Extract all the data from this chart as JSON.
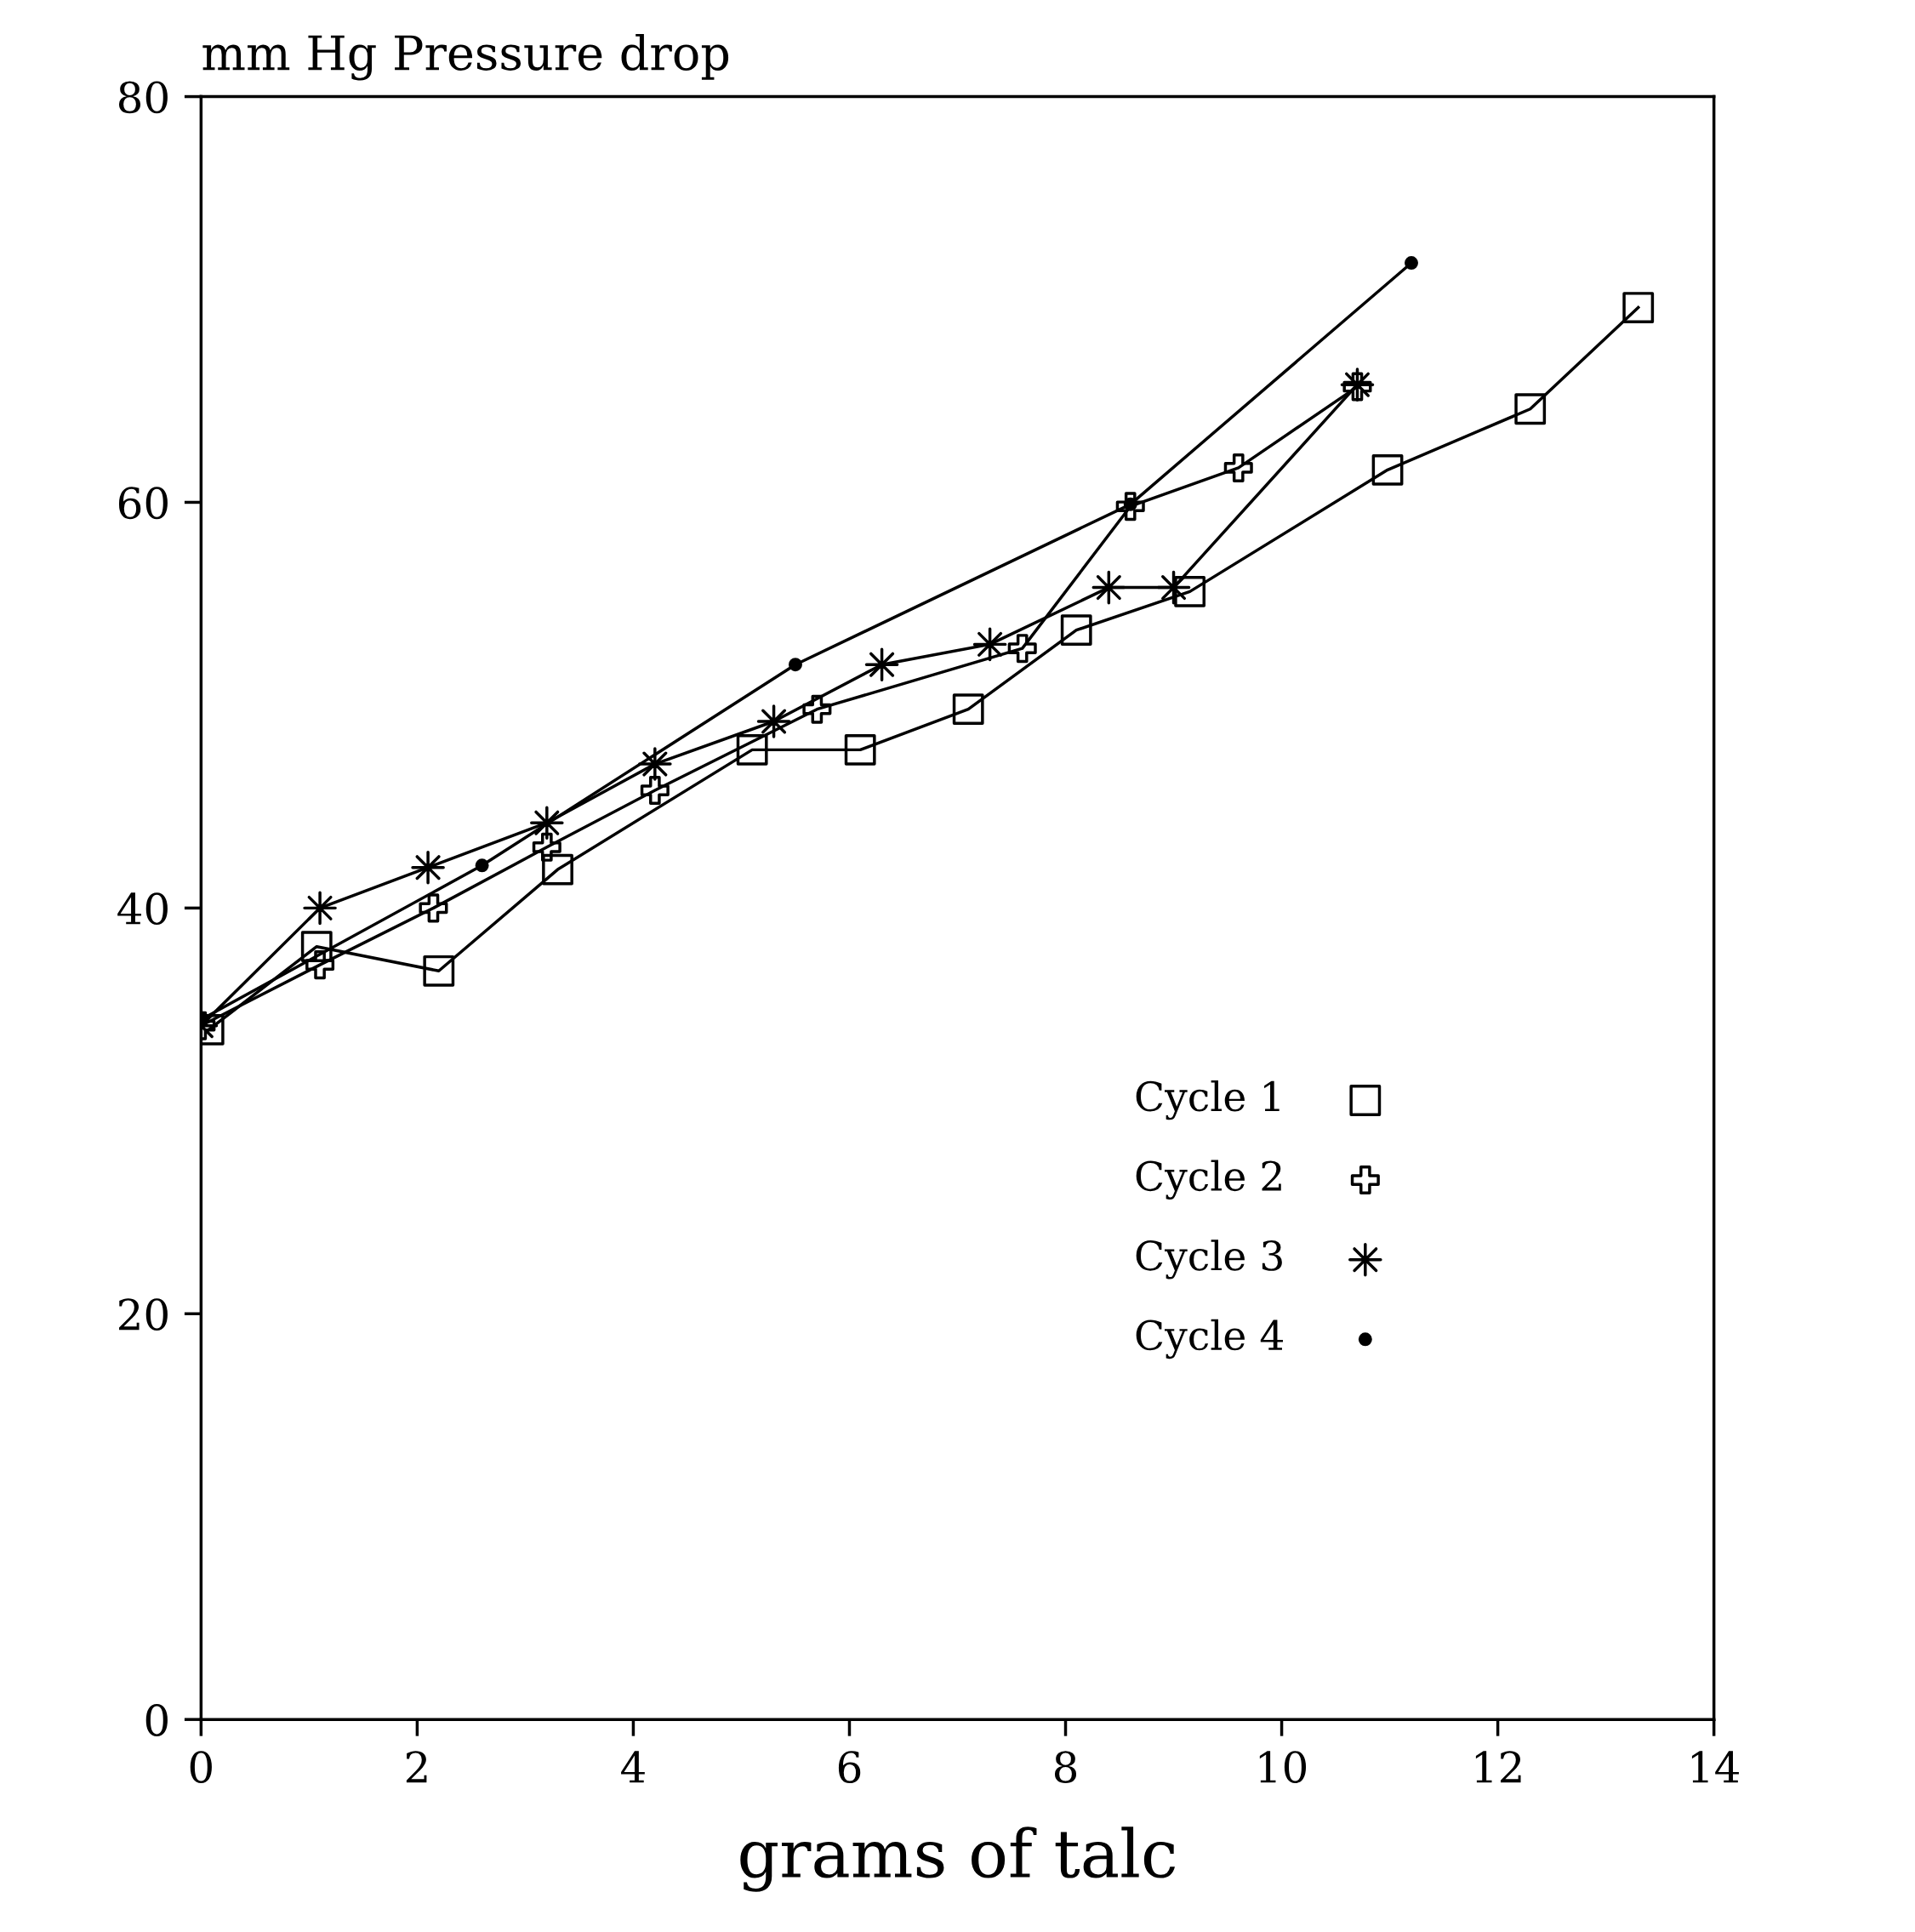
{
  "chart_data": {
    "type": "line",
    "ylabel": "mm Hg Pressure drop",
    "xlabel": "grams of talc",
    "xlim": [
      0,
      14
    ],
    "ylim": [
      0,
      80
    ],
    "xticks": [
      0,
      2,
      4,
      6,
      8,
      10,
      12,
      14
    ],
    "yticks": [
      0,
      20,
      40,
      60,
      80
    ],
    "grid": false,
    "legend": "bottom right",
    "line_style": "solid",
    "series": [
      {
        "name": "Cycle 1",
        "color": "#000000",
        "marker": "square",
        "x": [
          0.07,
          1.07,
          2.2,
          3.3,
          5.1,
          6.1,
          7.1,
          8.1,
          9.15,
          10.98,
          12.3,
          13.3
        ],
        "values": [
          34,
          38.1,
          36.9,
          41.9,
          47.8,
          47.8,
          49.8,
          53.7,
          55.6,
          61.6,
          64.6,
          69.6
        ]
      },
      {
        "name": "Cycle 2",
        "color": "#000000",
        "marker": "cross",
        "x": [
          0,
          1.1,
          2.15,
          3.2,
          4.2,
          5.7,
          7.6,
          8.6,
          9.6,
          10.7
        ],
        "values": [
          34.2,
          37.2,
          40,
          43,
          45.8,
          49.8,
          52.8,
          59.8,
          61.7,
          65.7
        ]
      },
      {
        "name": "Cycle 3",
        "color": "#000000",
        "marker": "star",
        "x": [
          0,
          1.1,
          2.1,
          3.2,
          4.2,
          5.3,
          6.3,
          7.3,
          8.4,
          9.0,
          10.7
        ],
        "values": [
          34.2,
          40,
          42,
          44.2,
          47.1,
          49.2,
          52,
          53,
          55.8,
          55.8,
          65.8
        ]
      },
      {
        "name": "Cycle 4",
        "color": "#000000",
        "marker": "circle",
        "x": [
          0,
          2.6,
          5.5,
          8.6,
          11.2
        ],
        "values": [
          34.5,
          42.1,
          52,
          59.9,
          71.8
        ]
      }
    ]
  }
}
